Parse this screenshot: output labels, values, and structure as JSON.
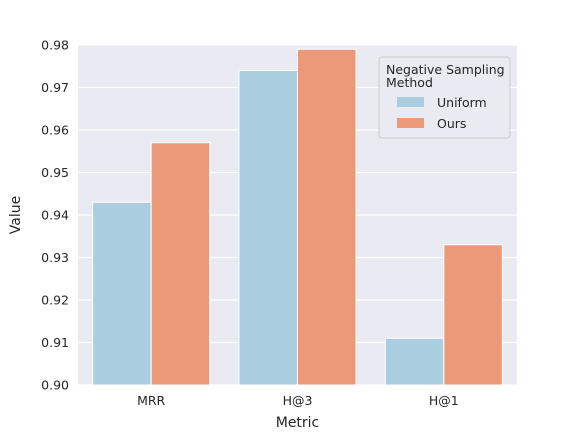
{
  "chart_data": {
    "type": "bar",
    "title": "",
    "xlabel": "Metric",
    "ylabel": "Value",
    "categories": [
      "MRR",
      "H@3",
      "H@1"
    ],
    "series": [
      {
        "name": "Uniform",
        "values": [
          0.943,
          0.974,
          0.911
        ],
        "color": "#abcde0"
      },
      {
        "name": "Ours",
        "values": [
          0.957,
          0.979,
          0.933
        ],
        "color": "#eb9978"
      }
    ],
    "ylim": [
      0.9,
      0.98
    ],
    "yticks": [
      "0.90",
      "0.91",
      "0.92",
      "0.93",
      "0.94",
      "0.95",
      "0.96",
      "0.97",
      "0.98"
    ],
    "grid": true,
    "background_color": "#eaeaf2",
    "legend": {
      "title": "Negative Sampling\nMethod",
      "placement": "top-right"
    }
  }
}
